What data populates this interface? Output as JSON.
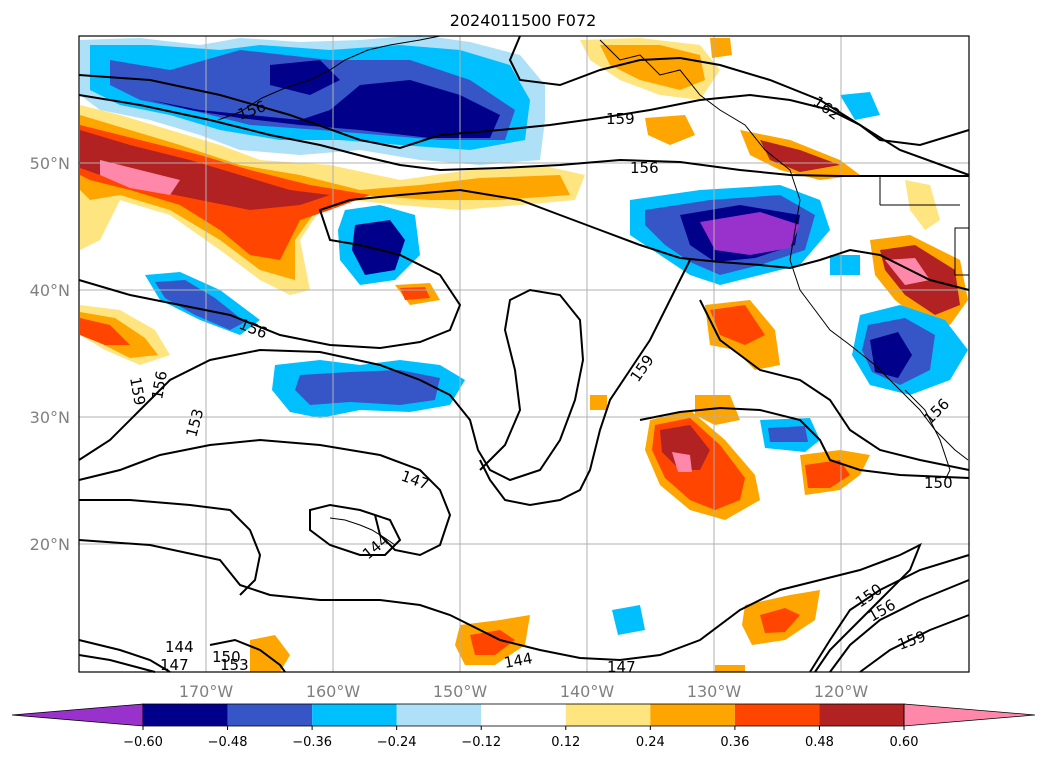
{
  "title": "2024011500 F072",
  "map": {
    "lat_labels": [
      "50°N",
      "40°N",
      "30°N",
      "20°N"
    ],
    "lon_labels": [
      "170°W",
      "160°W",
      "150°W",
      "140°W",
      "130°W",
      "120°W"
    ],
    "gridlines": true
  },
  "contour_labels": [
    "159",
    "156",
    "162",
    "156",
    "156",
    "159",
    "156",
    "153",
    "147",
    "144",
    "144",
    "147",
    "150",
    "153",
    "144",
    "147",
    "159",
    "150",
    "156",
    "159",
    "156",
    "150"
  ],
  "colorbar": {
    "ticks": [
      "−0.60",
      "−0.48",
      "−0.36",
      "−0.24",
      "−0.12",
      "0.12",
      "0.24",
      "0.36",
      "0.48",
      "0.60"
    ],
    "colors": [
      "#9932cc",
      "#00008b",
      "#3656c8",
      "#00bfff",
      "#aee0f8",
      "#ffffff",
      "#ffe57f",
      "#ffa500",
      "#ff4500",
      "#b22222",
      "#ff88aa"
    ],
    "extend": "both"
  }
}
